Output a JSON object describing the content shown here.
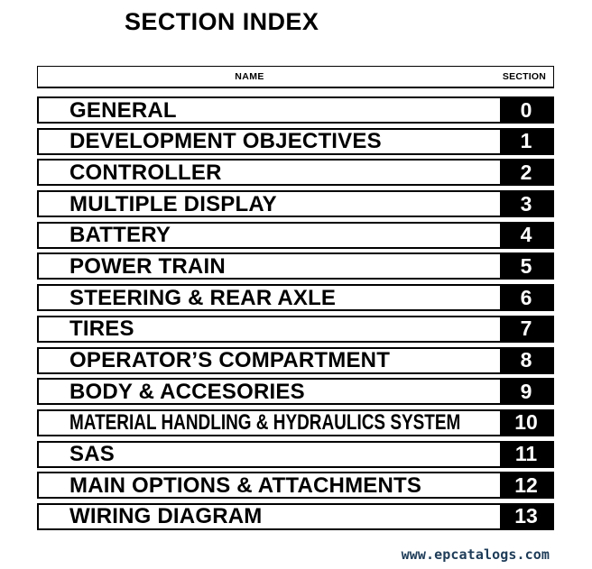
{
  "page": {
    "title": "SECTION INDEX",
    "watermark": "www.epcatalogs.com"
  },
  "table": {
    "headers": {
      "name": "NAME",
      "section": "SECTION"
    },
    "rows": [
      {
        "name": "GENERAL",
        "section": "0"
      },
      {
        "name": "DEVELOPMENT OBJECTIVES",
        "section": "1"
      },
      {
        "name": "CONTROLLER",
        "section": "2"
      },
      {
        "name": "MULTIPLE DISPLAY",
        "section": "3"
      },
      {
        "name": "BATTERY",
        "section": "4"
      },
      {
        "name": "POWER TRAIN",
        "section": "5"
      },
      {
        "name": "STEERING & REAR AXLE",
        "section": "6"
      },
      {
        "name": "TIRES",
        "section": "7"
      },
      {
        "name": "OPERATOR’S COMPARTMENT",
        "section": "8"
      },
      {
        "name": "BODY & ACCESORIES",
        "section": "9"
      },
      {
        "name": "MATERIAL HANDLING & HYDRAULICS SYSTEM",
        "section": "10"
      },
      {
        "name": "SAS",
        "section": "11"
      },
      {
        "name": "MAIN OPTIONS & ATTACHMENTS",
        "section": "12"
      },
      {
        "name": "WIRING DIAGRAM",
        "section": "13"
      }
    ]
  },
  "colors": {
    "ink": "#000000",
    "section_box_bg": "#000000",
    "section_box_text": "#ffffff",
    "watermark_text": "#1e3c58",
    "background": "#ffffff"
  }
}
